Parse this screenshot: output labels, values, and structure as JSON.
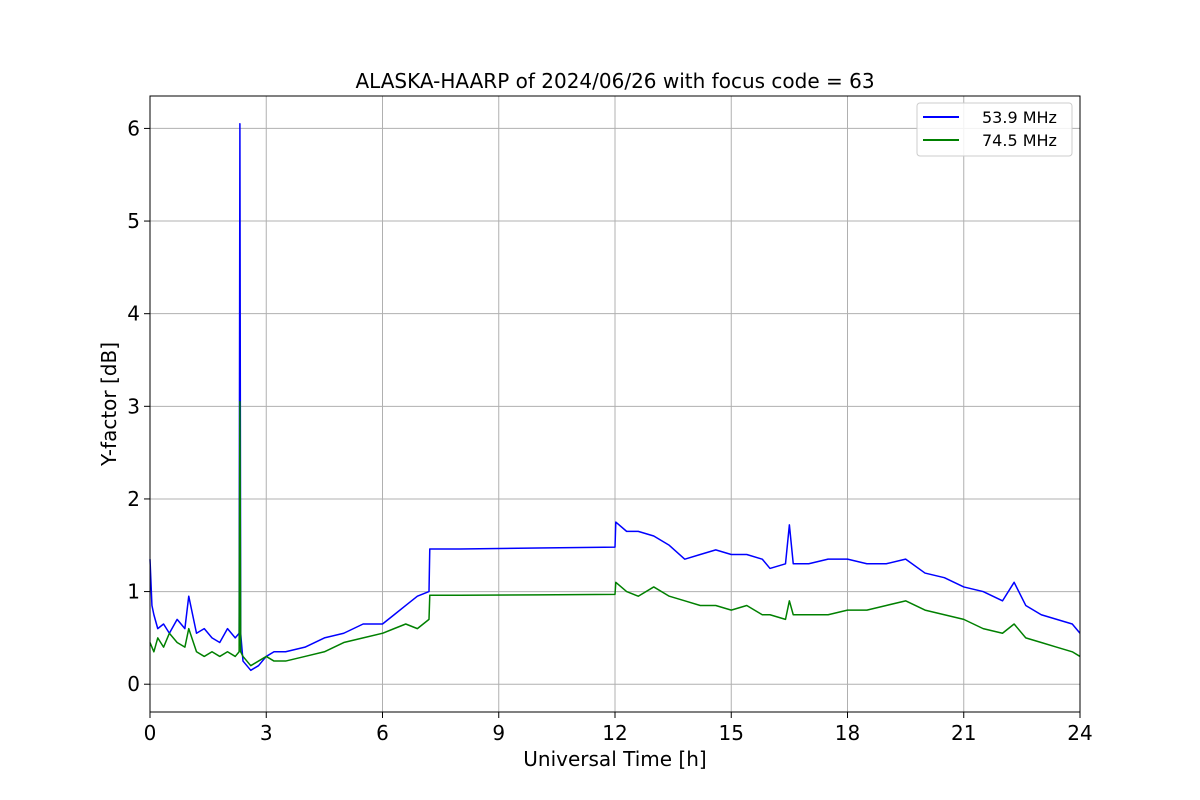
{
  "chart_data": {
    "type": "line",
    "title": "ALASKA-HAARP of 2024/06/26 with focus code = 63",
    "xlabel": "Universal Time [h]",
    "ylabel": "Y-factor [dB]",
    "xlim": [
      0,
      24
    ],
    "ylim": [
      -0.3,
      6.35
    ],
    "xticks": [
      0,
      3,
      6,
      9,
      12,
      15,
      18,
      21,
      24
    ],
    "xtick_labels": [
      "0",
      "3",
      "6",
      "9",
      "12",
      "15",
      "18",
      "21",
      "24"
    ],
    "yticks": [
      0,
      1,
      2,
      3,
      4,
      5,
      6
    ],
    "ytick_labels": [
      "0",
      "1",
      "2",
      "3",
      "4",
      "5",
      "6"
    ],
    "grid": true,
    "legend_position": "top-right",
    "series": [
      {
        "name": "53.9 MHz",
        "color": "#0000ff",
        "x": [
          0.0,
          0.05,
          0.1,
          0.2,
          0.35,
          0.5,
          0.7,
          0.9,
          1.0,
          1.2,
          1.4,
          1.6,
          1.8,
          2.0,
          2.2,
          2.3,
          2.32,
          2.34,
          2.4,
          2.6,
          2.8,
          3.0,
          3.2,
          3.5,
          4.0,
          4.5,
          5.0,
          5.5,
          6.0,
          6.3,
          6.6,
          6.9,
          7.2,
          7.22,
          8.0,
          10.0,
          12.0,
          12.02,
          12.3,
          12.6,
          13.0,
          13.4,
          13.8,
          14.2,
          14.6,
          15.0,
          15.4,
          15.8,
          16.0,
          16.4,
          16.5,
          16.6,
          17.0,
          17.5,
          18.0,
          18.5,
          19.0,
          19.5,
          20.0,
          20.5,
          21.0,
          21.5,
          22.0,
          22.3,
          22.6,
          23.0,
          23.4,
          23.8,
          24.0
        ],
        "y": [
          1.35,
          0.85,
          0.75,
          0.6,
          0.65,
          0.55,
          0.7,
          0.6,
          0.95,
          0.55,
          0.6,
          0.5,
          0.45,
          0.6,
          0.5,
          0.55,
          6.05,
          0.55,
          0.25,
          0.15,
          0.2,
          0.3,
          0.35,
          0.35,
          0.4,
          0.5,
          0.55,
          0.65,
          0.65,
          0.75,
          0.85,
          0.95,
          1.0,
          1.46,
          1.46,
          1.47,
          1.48,
          1.75,
          1.65,
          1.65,
          1.6,
          1.5,
          1.35,
          1.4,
          1.45,
          1.4,
          1.4,
          1.35,
          1.25,
          1.3,
          1.72,
          1.3,
          1.3,
          1.35,
          1.35,
          1.3,
          1.3,
          1.35,
          1.2,
          1.15,
          1.05,
          1.0,
          0.9,
          1.1,
          0.85,
          0.75,
          0.7,
          0.65,
          0.55
        ]
      },
      {
        "name": "74.5 MHz",
        "color": "#008000",
        "x": [
          0.0,
          0.1,
          0.2,
          0.35,
          0.5,
          0.7,
          0.9,
          1.0,
          1.2,
          1.4,
          1.6,
          1.8,
          2.0,
          2.2,
          2.3,
          2.32,
          2.34,
          2.4,
          2.6,
          2.8,
          3.0,
          3.2,
          3.5,
          4.0,
          4.5,
          5.0,
          5.5,
          6.0,
          6.3,
          6.6,
          6.9,
          7.2,
          7.22,
          8.0,
          10.0,
          12.0,
          12.02,
          12.3,
          12.6,
          13.0,
          13.4,
          13.8,
          14.2,
          14.6,
          15.0,
          15.4,
          15.8,
          16.0,
          16.4,
          16.5,
          16.6,
          17.0,
          17.5,
          18.0,
          18.5,
          19.0,
          19.5,
          20.0,
          20.5,
          21.0,
          21.5,
          22.0,
          22.3,
          22.6,
          23.0,
          23.4,
          23.8,
          24.0
        ],
        "y": [
          0.45,
          0.35,
          0.5,
          0.4,
          0.55,
          0.45,
          0.4,
          0.6,
          0.35,
          0.3,
          0.35,
          0.3,
          0.35,
          0.3,
          0.35,
          3.05,
          0.35,
          0.3,
          0.2,
          0.25,
          0.3,
          0.25,
          0.25,
          0.3,
          0.35,
          0.45,
          0.5,
          0.55,
          0.6,
          0.65,
          0.6,
          0.7,
          0.96,
          0.96,
          0.965,
          0.97,
          1.1,
          1.0,
          0.95,
          1.05,
          0.95,
          0.9,
          0.85,
          0.85,
          0.8,
          0.85,
          0.75,
          0.75,
          0.7,
          0.9,
          0.75,
          0.75,
          0.75,
          0.8,
          0.8,
          0.85,
          0.9,
          0.8,
          0.75,
          0.7,
          0.6,
          0.55,
          0.65,
          0.5,
          0.45,
          0.4,
          0.35,
          0.3
        ]
      }
    ]
  }
}
